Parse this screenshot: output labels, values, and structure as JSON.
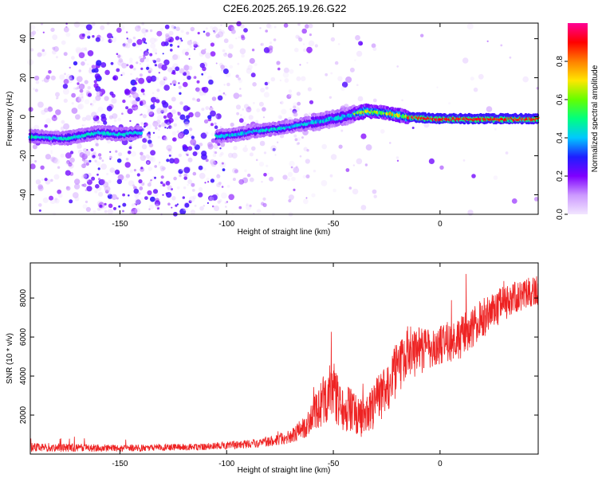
{
  "title": "C2E6.2025.265.19.26.G22",
  "chart_data": [
    {
      "type": "heatmap",
      "name": "spectrogram",
      "xlabel": "Height of straight line (km)",
      "ylabel": "Frequency (Hz)",
      "xlim": [
        -192,
        46
      ],
      "ylim": [
        -50,
        48
      ],
      "xticks": [
        -150,
        -100,
        -50,
        0
      ],
      "xtick_labels": [
        "-150",
        "-100",
        "-50",
        "0"
      ],
      "yticks": [
        -40,
        -20,
        0,
        20,
        40
      ],
      "ytick_labels": [
        "-40",
        "-20",
        "0",
        "20",
        "40"
      ],
      "colorbar": {
        "label": "Normalized spectral amplitude",
        "range": [
          0,
          1
        ],
        "ticks": [
          0.0,
          0.2,
          0.4,
          0.6,
          0.8
        ],
        "tick_labels": [
          "0.0",
          "0.2",
          "0.4",
          "0.6",
          "0.8"
        ],
        "colors": [
          "#f2e6ff",
          "#cc99ff",
          "#7f00ff",
          "#1e1eff",
          "#00c8ff",
          "#00ff80",
          "#64ff00",
          "#ffe600",
          "#ff7f00",
          "#ff0000",
          "#ff0096"
        ]
      },
      "ridge_trace": [
        {
          "x": -192,
          "y": -10
        },
        {
          "x": -175,
          "y": -11
        },
        {
          "x": -160,
          "y": -8
        },
        {
          "x": -150,
          "y": -9
        },
        {
          "x": -140,
          "y": -8
        },
        {
          "x": -105,
          "y": -10
        },
        {
          "x": -95,
          "y": -9
        },
        {
          "x": -85,
          "y": -7
        },
        {
          "x": -75,
          "y": -6
        },
        {
          "x": -65,
          "y": -4
        },
        {
          "x": -55,
          "y": -2
        },
        {
          "x": -45,
          "y": 0
        },
        {
          "x": -35,
          "y": 3
        },
        {
          "x": -25,
          "y": 2
        },
        {
          "x": -15,
          "y": 0
        },
        {
          "x": 0,
          "y": -1
        },
        {
          "x": 20,
          "y": -1
        },
        {
          "x": 46,
          "y": -1
        }
      ]
    },
    {
      "type": "line",
      "name": "snr",
      "xlabel": "Height of straight line (km)",
      "ylabel": "SNR (10 * v/v)",
      "xlim": [
        -192,
        46
      ],
      "ylim": [
        0,
        9800
      ],
      "xticks": [
        -150,
        -100,
        -50,
        0
      ],
      "xtick_labels": [
        "-150",
        "-100",
        "-50",
        "0"
      ],
      "yticks": [
        2000,
        4000,
        6000,
        8000
      ],
      "ytick_labels": [
        "2000",
        "4000",
        "6000",
        "8000"
      ],
      "color": "#ee2222",
      "envelope": [
        {
          "x": -192,
          "mean": 350,
          "spread": 500
        },
        {
          "x": -150,
          "mean": 300,
          "spread": 350
        },
        {
          "x": -110,
          "mean": 380,
          "spread": 350
        },
        {
          "x": -85,
          "mean": 550,
          "spread": 450
        },
        {
          "x": -70,
          "mean": 900,
          "spread": 700
        },
        {
          "x": -62,
          "mean": 1500,
          "spread": 1300
        },
        {
          "x": -52,
          "mean": 3200,
          "spread": 3000
        },
        {
          "x": -45,
          "mean": 2400,
          "spread": 2400
        },
        {
          "x": -35,
          "mean": 1800,
          "spread": 2000
        },
        {
          "x": -25,
          "mean": 3500,
          "spread": 2800
        },
        {
          "x": -15,
          "mean": 5200,
          "spread": 2800
        },
        {
          "x": -5,
          "mean": 5400,
          "spread": 2200
        },
        {
          "x": 10,
          "mean": 6000,
          "spread": 2200
        },
        {
          "x": 25,
          "mean": 7400,
          "spread": 2000
        },
        {
          "x": 40,
          "mean": 8300,
          "spread": 1600
        },
        {
          "x": 46,
          "mean": 8400,
          "spread": 1600
        }
      ]
    }
  ]
}
